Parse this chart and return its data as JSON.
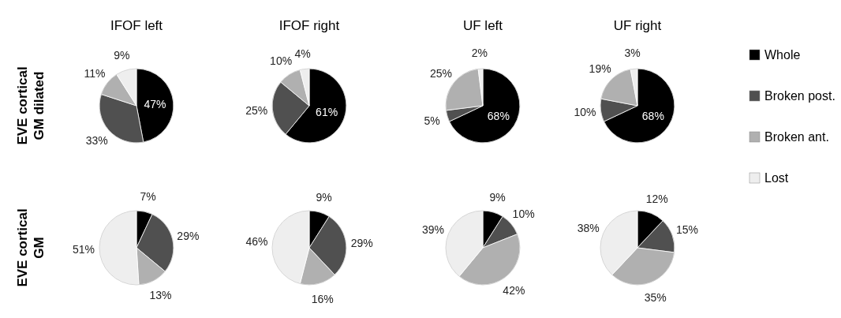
{
  "chart_data": [
    {
      "type": "pie",
      "title": "IFOF left",
      "ylabel": "EVE cortical GM dilated",
      "values": [
        47,
        33,
        11,
        9
      ],
      "value_labels": [
        "47%",
        "33%",
        "11%",
        "9%"
      ],
      "colors": [
        "#000000",
        "#505050",
        "#b0b0b0",
        "#eeeeee"
      ]
    },
    {
      "type": "pie",
      "title": "IFOF right",
      "values": [
        61,
        25,
        10,
        4
      ],
      "value_labels": [
        "61%",
        "25%",
        "10%",
        "4%"
      ],
      "colors": [
        "#000000",
        "#505050",
        "#b0b0b0",
        "#eeeeee"
      ]
    },
    {
      "type": "pie",
      "title": "UF left",
      "values": [
        68,
        5,
        25,
        2
      ],
      "value_labels": [
        "68%",
        "5%",
        "25%",
        "2%"
      ],
      "colors": [
        "#000000",
        "#505050",
        "#b0b0b0",
        "#eeeeee"
      ]
    },
    {
      "type": "pie",
      "title": "UF right",
      "legend": "right",
      "categories": [
        "Whole",
        "Broken post.",
        "Broken ant.",
        "Lost"
      ],
      "values": [
        68,
        10,
        19,
        3
      ],
      "value_labels": [
        "68%",
        "10%",
        "19%",
        "3%"
      ],
      "colors": [
        "#000000",
        "#505050",
        "#b0b0b0",
        "#eeeeee"
      ]
    },
    {
      "type": "pie",
      "ylabel": "EVE cortical GM",
      "values": [
        7,
        29,
        13,
        51
      ],
      "value_labels": [
        "7%",
        "29%",
        "13%",
        "51%"
      ],
      "colors": [
        "#000000",
        "#505050",
        "#b0b0b0",
        "#eeeeee"
      ]
    },
    {
      "type": "pie",
      "values": [
        9,
        29,
        16,
        46
      ],
      "value_labels": [
        "9%",
        "29%",
        "16%",
        "46%"
      ],
      "colors": [
        "#000000",
        "#505050",
        "#b0b0b0",
        "#eeeeee"
      ]
    },
    {
      "type": "pie",
      "values": [
        9,
        10,
        42,
        39
      ],
      "value_labels": [
        "9%",
        "10%",
        "42%",
        "39%"
      ],
      "colors": [
        "#000000",
        "#505050",
        "#b0b0b0",
        "#eeeeee"
      ]
    },
    {
      "type": "pie",
      "values": [
        12,
        15,
        35,
        38
      ],
      "value_labels": [
        "12%",
        "15%",
        "35%",
        "38%"
      ],
      "colors": [
        "#000000",
        "#505050",
        "#b0b0b0",
        "#eeeeee"
      ]
    }
  ]
}
